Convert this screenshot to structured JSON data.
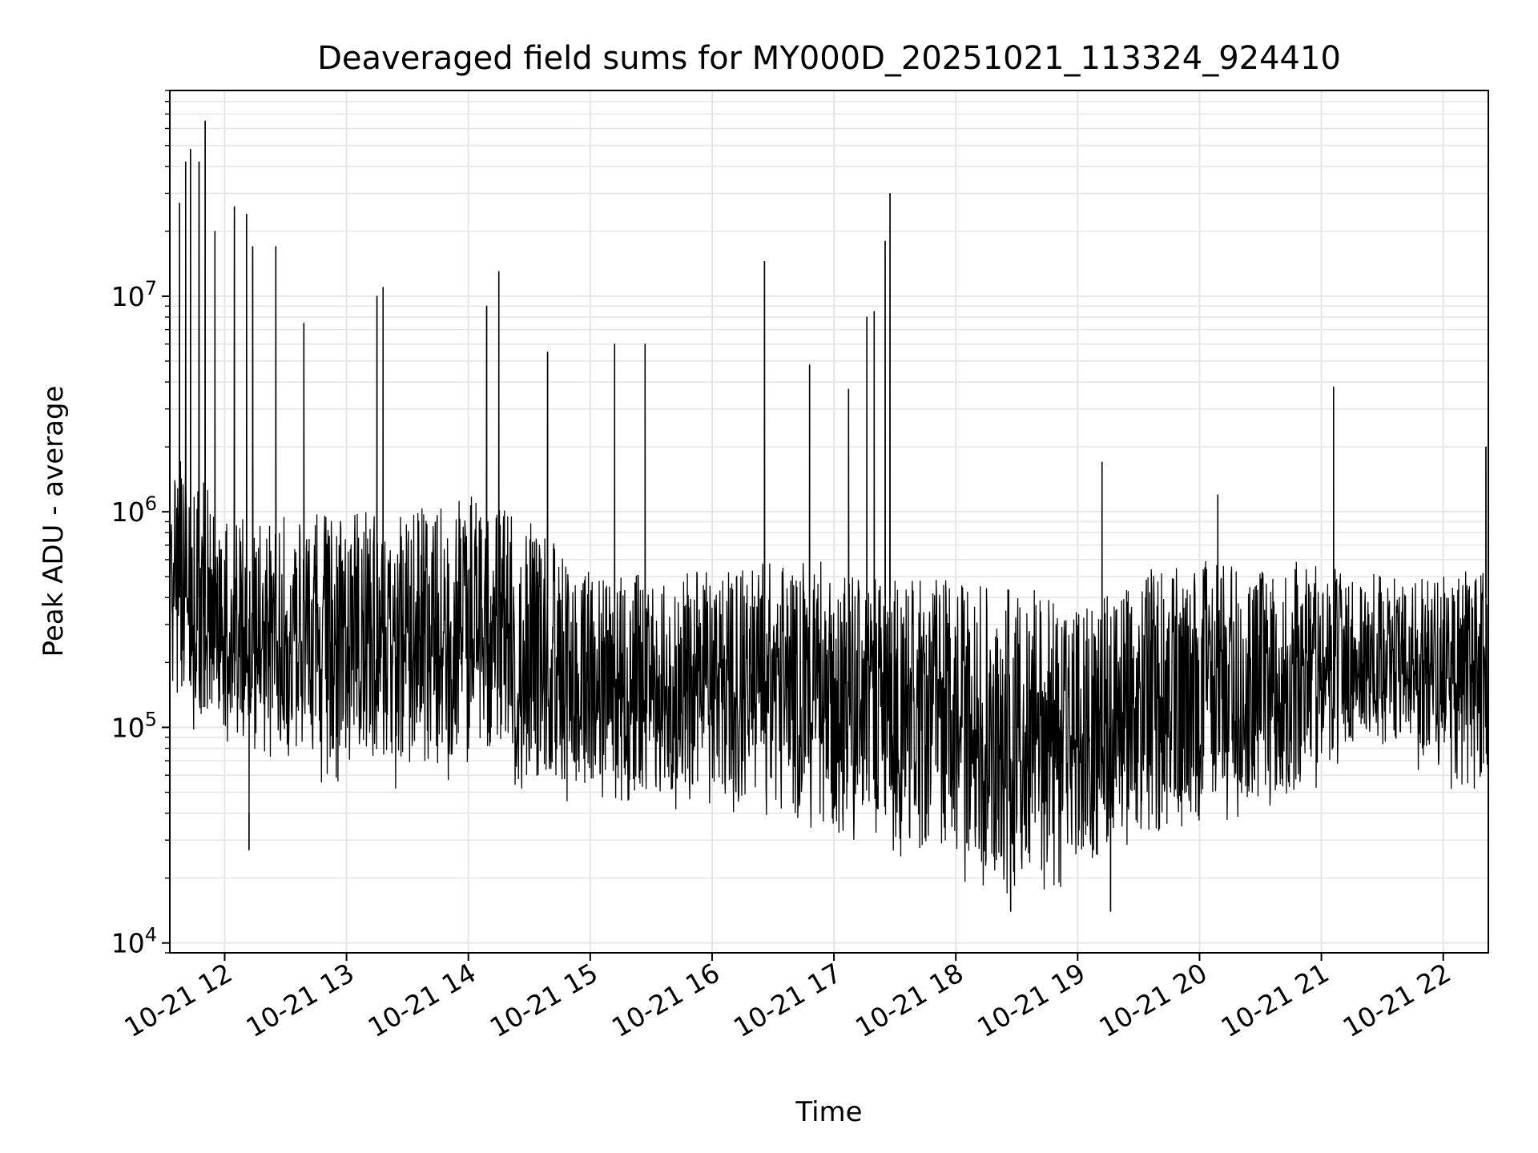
{
  "chart_data": {
    "type": "line",
    "title": "Deaveraged field sums for MY000D_20251021_113324_924410",
    "xlabel": "Time",
    "ylabel": "Peak ADU - average",
    "yscale": "log",
    "ylim": [
      9000,
      90000000
    ],
    "y_ticks": [
      {
        "value": 10000,
        "mantissa": "10",
        "exp": "4"
      },
      {
        "value": 100000,
        "mantissa": "10",
        "exp": "5"
      },
      {
        "value": 1000000,
        "mantissa": "10",
        "exp": "6"
      },
      {
        "value": 10000000,
        "mantissa": "10",
        "exp": "7"
      }
    ],
    "xlim_hours": [
      11.55,
      22.37
    ],
    "x_ticks": [
      {
        "hour": 12,
        "label": "10-21 12"
      },
      {
        "hour": 13,
        "label": "10-21 13"
      },
      {
        "hour": 14,
        "label": "10-21 14"
      },
      {
        "hour": 15,
        "label": "10-21 15"
      },
      {
        "hour": 16,
        "label": "10-21 16"
      },
      {
        "hour": 17,
        "label": "10-21 17"
      },
      {
        "hour": 18,
        "label": "10-21 18"
      },
      {
        "hour": 19,
        "label": "10-21 19"
      },
      {
        "hour": 20,
        "label": "10-21 20"
      },
      {
        "hour": 21,
        "label": "10-21 21"
      },
      {
        "hour": 22,
        "label": "10-21 22"
      }
    ],
    "grid": true,
    "line_color": "#000000",
    "grid_color": "#e6e6e6",
    "envelope": {
      "hours": [
        11.55,
        11.9,
        12.2,
        12.6,
        13.0,
        13.5,
        14.0,
        14.5,
        15.0,
        15.5,
        16.0,
        16.5,
        17.0,
        17.5,
        18.0,
        18.5,
        19.0,
        19.3,
        19.6,
        20.0,
        20.4,
        20.8,
        21.2,
        21.6,
        22.0,
        22.37
      ],
      "upper": [
        2500000,
        1200000,
        900000,
        1000000,
        1000000,
        1000000,
        1200000,
        900000,
        550000,
        500000,
        550000,
        600000,
        600000,
        500000,
        480000,
        450000,
        420000,
        420000,
        550000,
        600000,
        600000,
        600000,
        550000,
        500000,
        550000,
        550000
      ],
      "lower": [
        120000,
        80000,
        70000,
        60000,
        50000,
        50000,
        55000,
        45000,
        42000,
        40000,
        40000,
        35000,
        30000,
        25000,
        19000,
        16000,
        18000,
        17000,
        28000,
        35000,
        35000,
        40000,
        65000,
        80000,
        50000,
        45000
      ]
    },
    "peaks": [
      {
        "hour": 11.63,
        "value": 27000000
      },
      {
        "hour": 11.68,
        "value": 42000000
      },
      {
        "hour": 11.72,
        "value": 48000000
      },
      {
        "hour": 11.79,
        "value": 42000000
      },
      {
        "hour": 11.84,
        "value": 65000000
      },
      {
        "hour": 11.92,
        "value": 20000000
      },
      {
        "hour": 12.08,
        "value": 26000000
      },
      {
        "hour": 12.18,
        "value": 24000000
      },
      {
        "hour": 12.23,
        "value": 17000000
      },
      {
        "hour": 12.2,
        "value": 27000,
        "low": true
      },
      {
        "hour": 12.42,
        "value": 17000000
      },
      {
        "hour": 12.65,
        "value": 7500000
      },
      {
        "hour": 13.25,
        "value": 10000000
      },
      {
        "hour": 13.3,
        "value": 11000000
      },
      {
        "hour": 14.15,
        "value": 9000000
      },
      {
        "hour": 14.25,
        "value": 13000000
      },
      {
        "hour": 14.65,
        "value": 5500000
      },
      {
        "hour": 15.2,
        "value": 6000000
      },
      {
        "hour": 15.45,
        "value": 6000000
      },
      {
        "hour": 16.43,
        "value": 14500000
      },
      {
        "hour": 16.8,
        "value": 4800000
      },
      {
        "hour": 17.12,
        "value": 3700000
      },
      {
        "hour": 17.27,
        "value": 8000000
      },
      {
        "hour": 17.33,
        "value": 8500000
      },
      {
        "hour": 17.42,
        "value": 18000000
      },
      {
        "hour": 17.46,
        "value": 30000000
      },
      {
        "hour": 19.2,
        "value": 1700000
      },
      {
        "hour": 20.15,
        "value": 1200000
      },
      {
        "hour": 21.1,
        "value": 3800000
      },
      {
        "hour": 22.35,
        "value": 2000000
      },
      {
        "hour": 19.27,
        "value": 14000,
        "low": true
      },
      {
        "hour": 18.45,
        "value": 14000,
        "low": true
      }
    ]
  }
}
